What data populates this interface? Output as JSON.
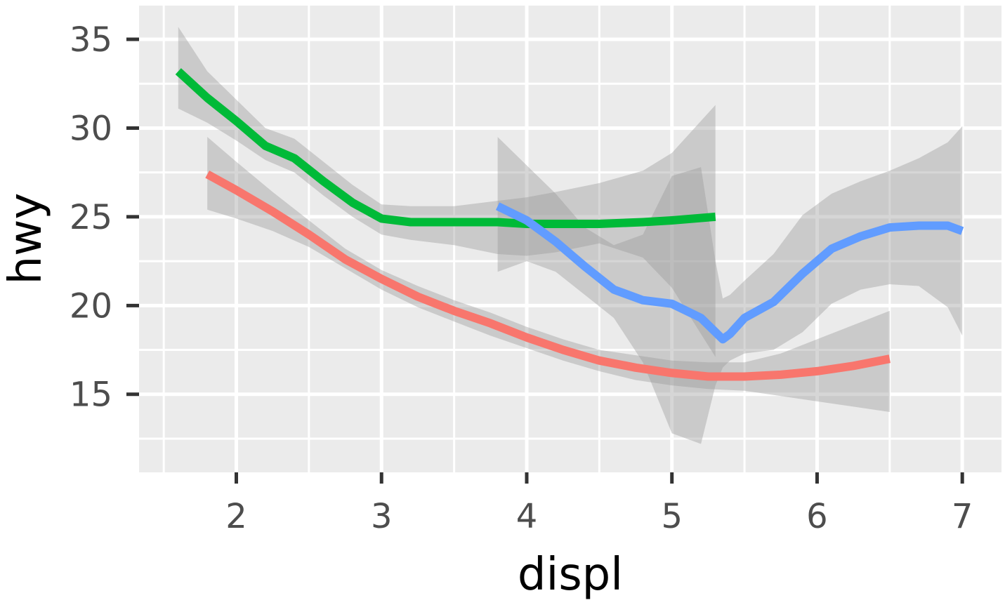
{
  "chart_data": {
    "type": "line",
    "title": "",
    "xlabel": "displ",
    "ylabel": "hwy",
    "xlim": [
      1.33,
      7.27
    ],
    "ylim": [
      10.6,
      36.9
    ],
    "x_ticks": [
      2,
      3,
      4,
      5,
      6,
      7
    ],
    "y_ticks": [
      15,
      20,
      25,
      30,
      35
    ],
    "x_tick_labels": [
      "2",
      "3",
      "4",
      "5",
      "6",
      "7"
    ],
    "y_tick_labels": [
      "15",
      "20",
      "25",
      "30",
      "35"
    ],
    "grid": true,
    "legend": "none",
    "panel_background": "#ebebeb",
    "grid_color": "#ffffff",
    "ribbon_color": "#999999",
    "series": [
      {
        "color": "#f8766d",
        "x": [
          1.8,
          2.0,
          2.25,
          2.5,
          2.75,
          3.0,
          3.25,
          3.5,
          3.75,
          4.0,
          4.25,
          4.5,
          4.75,
          5.0,
          5.25,
          5.5,
          5.75,
          6.0,
          6.25,
          6.5
        ],
        "y": [
          27.4,
          26.5,
          25.3,
          24.0,
          22.6,
          21.5,
          20.5,
          19.7,
          19.0,
          18.2,
          17.5,
          16.9,
          16.5,
          16.2,
          16.0,
          16.0,
          16.1,
          16.3,
          16.6,
          17.0
        ],
        "lower": [
          25.4,
          24.9,
          24.2,
          23.3,
          22.1,
          20.9,
          19.9,
          19.1,
          18.3,
          17.6,
          16.9,
          16.3,
          15.8,
          15.5,
          15.3,
          15.2,
          14.9,
          14.6,
          14.3,
          14.0
        ],
        "upper": [
          29.5,
          28.1,
          26.4,
          24.8,
          23.2,
          22.0,
          21.1,
          20.3,
          19.6,
          18.8,
          18.1,
          17.5,
          17.2,
          16.9,
          16.8,
          16.8,
          17.3,
          18.1,
          18.9,
          19.7
        ]
      },
      {
        "color": "#00ba38",
        "x": [
          1.6,
          1.8,
          2.0,
          2.2,
          2.4,
          2.6,
          2.8,
          3.0,
          3.2,
          3.5,
          3.8,
          4.0,
          4.2,
          4.5,
          4.8,
          5.0,
          5.3
        ],
        "y": [
          33.2,
          31.7,
          30.4,
          29.0,
          28.3,
          27.0,
          25.8,
          24.9,
          24.7,
          24.7,
          24.7,
          24.6,
          24.6,
          24.6,
          24.7,
          24.8,
          25.0
        ],
        "lower": [
          31.1,
          30.3,
          29.3,
          28.2,
          27.5,
          26.2,
          25.0,
          24.0,
          23.7,
          23.4,
          22.9,
          22.8,
          23.0,
          23.5,
          22.7,
          21.0,
          17.1
        ],
        "upper": [
          35.7,
          33.2,
          31.6,
          30.0,
          29.4,
          28.1,
          26.8,
          25.7,
          25.6,
          25.6,
          25.9,
          26.1,
          26.4,
          26.9,
          27.6,
          28.6,
          31.3
        ]
      },
      {
        "color": "#619cff",
        "x": [
          3.8,
          4.0,
          4.2,
          4.4,
          4.6,
          4.8,
          5.0,
          5.2,
          5.3,
          5.35,
          5.4,
          5.5,
          5.7,
          5.9,
          6.1,
          6.3,
          6.5,
          6.7,
          6.9,
          7.0
        ],
        "y": [
          25.6,
          24.8,
          23.6,
          22.2,
          20.9,
          20.3,
          20.1,
          19.3,
          18.5,
          18.1,
          18.4,
          19.3,
          20.2,
          21.8,
          23.2,
          23.9,
          24.4,
          24.5,
          24.5,
          24.2
        ],
        "lower": [
          21.9,
          22.5,
          21.9,
          20.6,
          19.3,
          16.8,
          12.8,
          12.2,
          15.5,
          16.5,
          16.9,
          17.3,
          17.5,
          18.5,
          20.1,
          20.9,
          21.2,
          21.1,
          19.9,
          18.3
        ],
        "upper": [
          29.5,
          27.9,
          26.3,
          24.4,
          23.4,
          24.0,
          27.3,
          27.8,
          22.5,
          20.4,
          20.6,
          21.4,
          22.9,
          25.1,
          26.3,
          27.0,
          27.6,
          28.3,
          29.2,
          30.1
        ]
      }
    ]
  }
}
